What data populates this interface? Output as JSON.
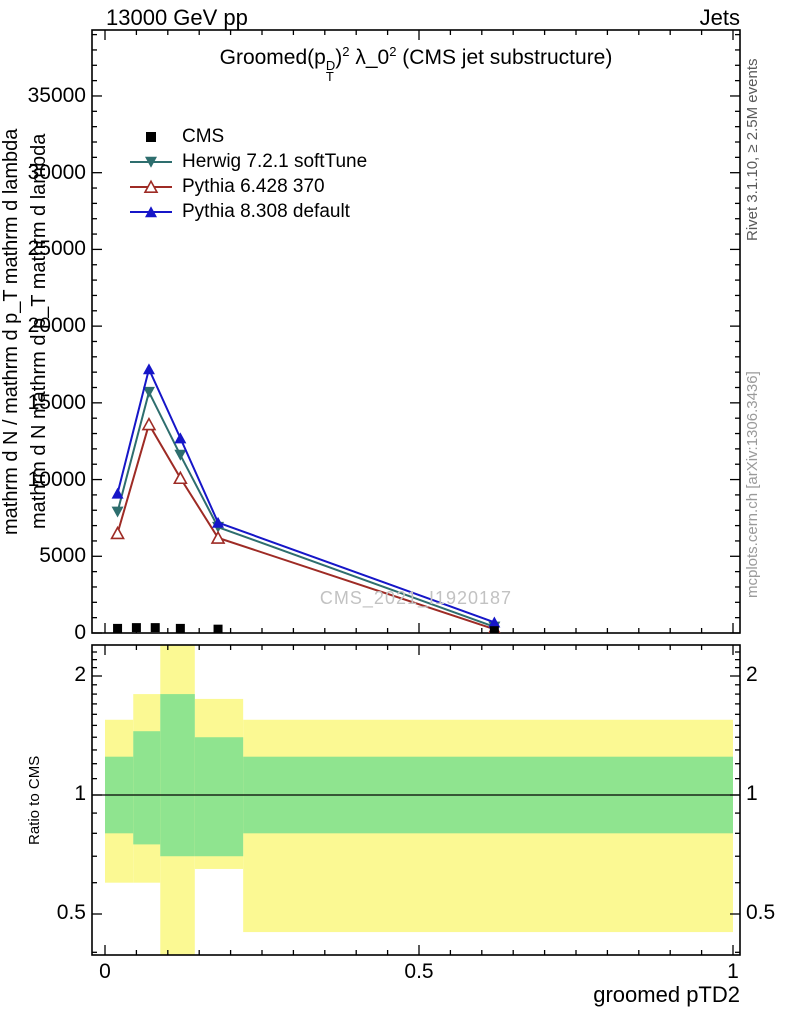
{
  "header": {
    "left": "13000 GeV pp",
    "right": "Jets"
  },
  "title": {
    "pre": "Groomed",
    "paren": "(p",
    "sup": "D",
    "sub": "T",
    "close": ")",
    "exp1": "2",
    "mid": " λ_0",
    "exp2": "2",
    "post": " (CMS jet substructure)"
  },
  "watermark": "CMS_2021_I1920187",
  "side_texts": {
    "rivet": "Rivet 3.1.10, ≥ 2.5M events",
    "mcplots": "mcplots.cern.ch [arXiv:1306.3436]"
  },
  "axis_labels": {
    "y_outer": "mathrm d N / mathrm d p_T mathrm d lambda",
    "y_inner": "mathrm d N mathrm d p_T mathrm d lambda",
    "ratio": "Ratio to CMS",
    "x": "groomed pTD2"
  },
  "legend": [
    {
      "label": "CMS",
      "marker": "square",
      "color": "#000000"
    },
    {
      "label": "Herwig 7.2.1 softTune",
      "marker": "triangle-down",
      "color": "#2e6e6e"
    },
    {
      "label": "Pythia 6.428 370",
      "marker": "triangle-up-open",
      "color": "#9e2b25"
    },
    {
      "label": "Pythia 8.308 default",
      "marker": "triangle-up",
      "color": "#1616c8"
    }
  ],
  "chart_data": {
    "type": "line",
    "title": "Groomed (p_T^D)^2 λ_0^2 (CMS jet substructure)",
    "xlabel": "groomed pTD2",
    "ylabel": "mathrm d N / mathrm d p_T mathrm d lambda",
    "xlim": [
      0,
      1
    ],
    "ylim": [
      0,
      39300
    ],
    "xticks": [
      0,
      0.5,
      1
    ],
    "yticks": [
      0,
      5000,
      10000,
      15000,
      20000,
      25000,
      30000,
      35000
    ],
    "x": [
      0.02,
      0.07,
      0.12,
      0.18,
      0.62
    ],
    "series": [
      {
        "name": "Herwig 7.2.1 softTune",
        "color": "#2e6e6e",
        "marker": "triangle-down",
        "values": [
          7900,
          15700,
          11600,
          6900,
          400
        ]
      },
      {
        "name": "Pythia 6.428 370",
        "color": "#9e2b25",
        "marker": "triangle-up-open",
        "values": [
          6500,
          13600,
          10100,
          6200,
          250
        ]
      },
      {
        "name": "Pythia 8.308 default",
        "color": "#1616c8",
        "marker": "triangle-up",
        "values": [
          9100,
          17200,
          12700,
          7200,
          700
        ]
      }
    ],
    "cms_points": {
      "name": "CMS",
      "marker": "square",
      "color": "#000000",
      "x": [
        0.02,
        0.05,
        0.08,
        0.12,
        0.18,
        0.62
      ],
      "values": [
        300,
        350,
        350,
        300,
        250,
        150
      ]
    },
    "ratio_panel": {
      "ylabel": "Ratio to CMS",
      "yticks": [
        0.5,
        1,
        2
      ],
      "ylim": [
        0.39,
        2.42
      ],
      "baseline": 1,
      "band_colors": {
        "outer": "#fbf993",
        "inner": "#8fe48f"
      },
      "bands": [
        {
          "x0": 0.0,
          "x1": 0.045,
          "outer": [
            0.6,
            1.55
          ],
          "inner": [
            0.8,
            1.25
          ]
        },
        {
          "x0": 0.045,
          "x1": 0.088,
          "outer": [
            0.6,
            1.8
          ],
          "inner": [
            0.75,
            1.45
          ]
        },
        {
          "x0": 0.088,
          "x1": 0.143,
          "outer": [
            0.35,
            2.45
          ],
          "inner": [
            0.7,
            1.8
          ]
        },
        {
          "x0": 0.143,
          "x1": 0.22,
          "outer": [
            0.65,
            1.75
          ],
          "inner": [
            0.7,
            1.4
          ]
        },
        {
          "x0": 0.22,
          "x1": 1.0,
          "outer": [
            0.45,
            1.55
          ],
          "inner": [
            0.8,
            1.25
          ]
        }
      ]
    }
  }
}
